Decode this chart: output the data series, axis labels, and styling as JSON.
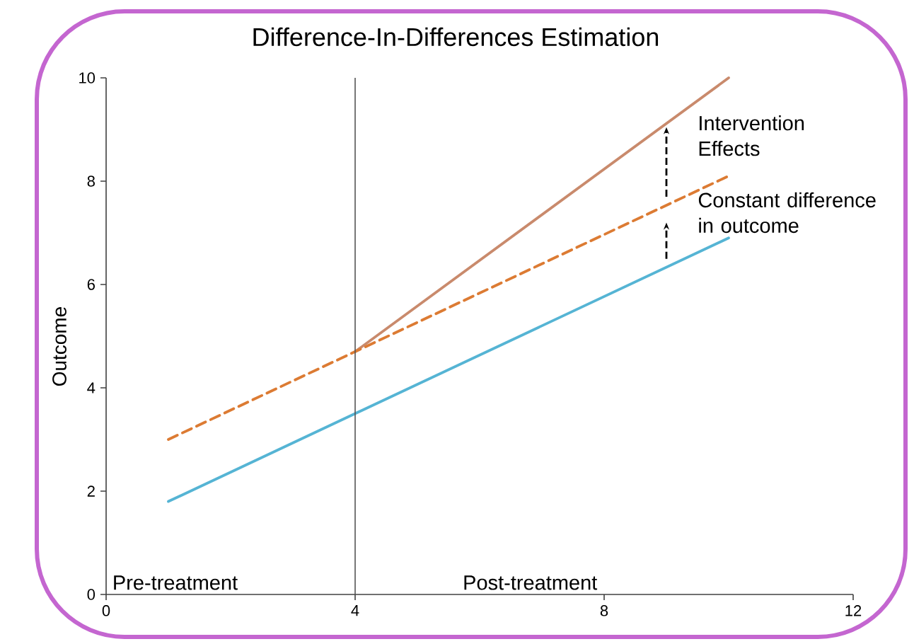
{
  "chart_data": {
    "type": "line",
    "title": "Difference-In-Differences Estimation",
    "ylabel": "Outcome",
    "series": [
      {
        "color": "#c98a6c",
        "line_style": "solid",
        "x": [
          4,
          10
        ],
        "values": [
          4.7,
          10
        ]
      },
      {
        "color": "#dc7b33",
        "line_style": "dashed",
        "x": [
          1,
          10
        ],
        "values": [
          3,
          8.1
        ]
      },
      {
        "color": "#55b4d4",
        "line_style": "solid",
        "x": [
          1,
          10
        ],
        "values": [
          1.8,
          6.9
        ]
      }
    ],
    "xlim": [
      0,
      12
    ],
    "ylim": [
      0,
      10
    ],
    "xticks": [
      0,
      4,
      8,
      12
    ],
    "yticks": [
      0,
      2,
      4,
      6,
      8,
      10
    ],
    "marker": "none",
    "ref_lines": [
      {
        "axis": "x",
        "value": 4,
        "color": "#555555"
      }
    ],
    "annotations": [
      "Pre-treatment",
      "Post-treatment",
      {
        "text": "Intervention Effects",
        "x": 9,
        "y": 9.1
      },
      {
        "text": "Constant difference in outcome",
        "x": 9,
        "y": 7.5
      }
    ]
  }
}
